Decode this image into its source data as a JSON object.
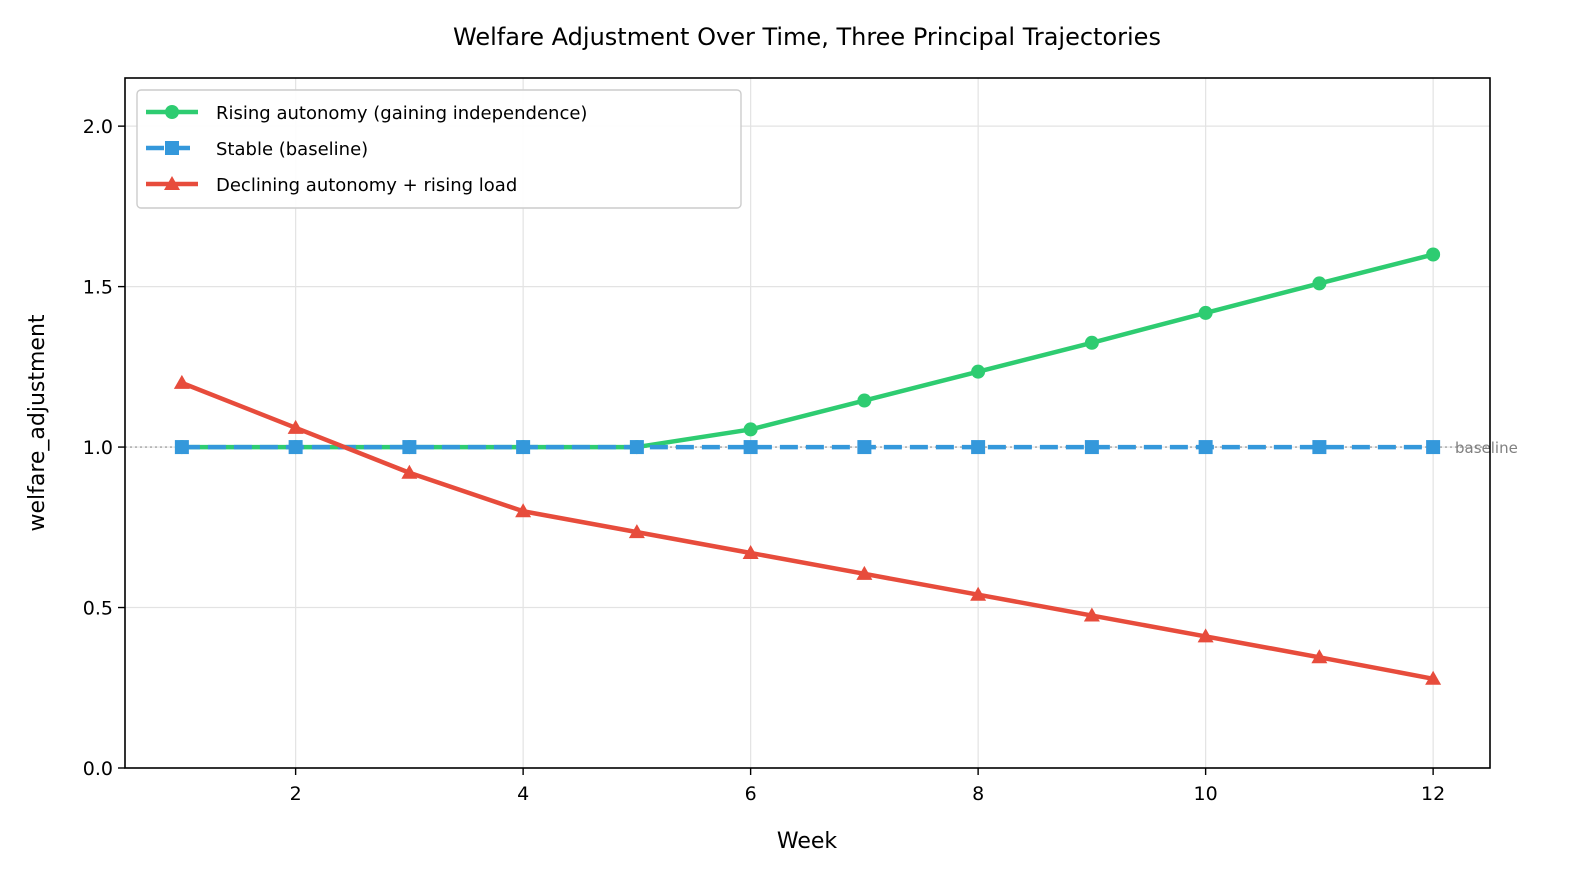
{
  "chart_data": {
    "type": "line",
    "title": "Welfare Adjustment Over Time, Three Principal Trajectories",
    "xlabel": "Week",
    "ylabel": "welfare_adjustment",
    "xlim": [
      0.5,
      12.5
    ],
    "ylim": [
      0.0,
      2.15
    ],
    "xticks": [
      2,
      4,
      6,
      8,
      10,
      12
    ],
    "yticks": [
      0.0,
      0.5,
      1.0,
      1.5,
      2.0
    ],
    "xtick_labels": [
      "2",
      "4",
      "6",
      "8",
      "10",
      "12"
    ],
    "ytick_labels": [
      "0.0",
      "0.5",
      "1.0",
      "1.5",
      "2.0"
    ],
    "grid": true,
    "legend_position": "top-left",
    "x": [
      1,
      2,
      3,
      4,
      5,
      6,
      7,
      8,
      9,
      10,
      11,
      12
    ],
    "series": [
      {
        "name": "Rising autonomy (gaining independence)",
        "color": "#2ecc71",
        "marker": "circle",
        "line_style": "solid",
        "values": [
          1.0,
          1.0,
          1.0,
          1.0,
          1.0,
          1.055,
          1.145,
          1.235,
          1.325,
          1.418,
          1.51,
          1.6
        ]
      },
      {
        "name": "Stable (baseline)",
        "color": "#3498db",
        "marker": "square",
        "line_style": "dashed",
        "values": [
          1.0,
          1.0,
          1.0,
          1.0,
          1.0,
          1.0,
          1.0,
          1.0,
          1.0,
          1.0,
          1.0,
          1.0
        ]
      },
      {
        "name": "Declining autonomy + rising load",
        "color": "#e74c3c",
        "marker": "triangle",
        "line_style": "solid",
        "values": [
          1.2,
          1.06,
          0.92,
          0.8,
          0.735,
          0.67,
          0.605,
          0.54,
          0.475,
          0.41,
          0.345,
          0.278
        ]
      }
    ],
    "reference_line": {
      "y": 1.0,
      "label": "baseline",
      "color": "#a0a0a0"
    }
  }
}
